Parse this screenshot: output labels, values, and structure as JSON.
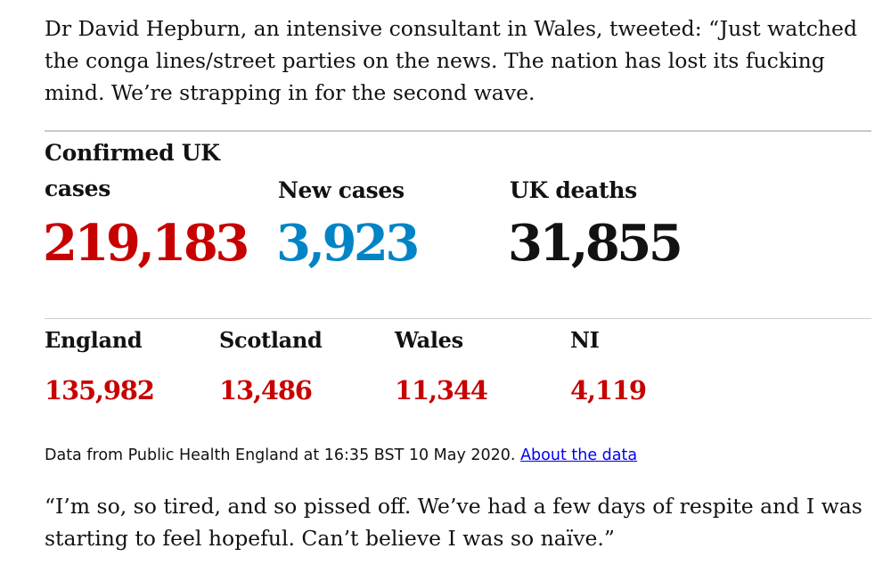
{
  "intro_paragraph": "Dr David Hepburn, an intensive consultant in Wales, tweeted: “Just watched the conga lines/street parties on the news. The nation has lost its fucking mind. We’re strapping in for the second wave.",
  "stats": {
    "confirmed": {
      "label": "Confirmed UK cases",
      "value": "219,183",
      "color": "#c70000"
    },
    "new_cases": {
      "label": "New cases",
      "value": "3,923",
      "color": "#0084c6"
    },
    "deaths": {
      "label": "UK deaths",
      "value": "31,855",
      "color": "#121212"
    }
  },
  "regions": [
    {
      "name": "England",
      "value": "135,982"
    },
    {
      "name": "Scotland",
      "value": "13,486"
    },
    {
      "name": "Wales",
      "value": "11,344"
    },
    {
      "name": "NI",
      "value": "4,119"
    }
  ],
  "source": {
    "text": "Data from Public Health England at 16:35 BST 10 May 2020.",
    "link_label": "About the data"
  },
  "closing_paragraph": "“I’m so, so tired, and so pissed off. We’ve had a few days of respite and I was starting to feel hopeful. Can’t believe I was so naïve.”"
}
